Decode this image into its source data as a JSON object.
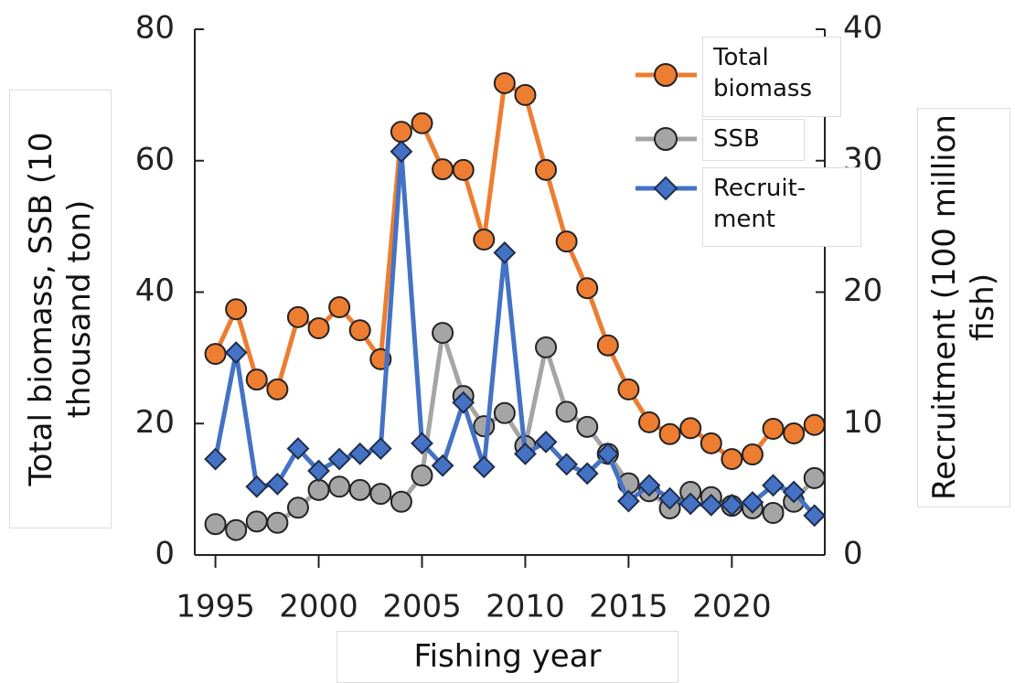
{
  "chart_data": {
    "type": "line",
    "x_label": "Fishing year",
    "y_label": "Total biomass, SSB (10 thousand ton)",
    "y2_label": "Recruitment (100 million fish)",
    "x": [
      1995,
      1996,
      1997,
      1998,
      1999,
      2000,
      2001,
      2002,
      2003,
      2004,
      2005,
      2006,
      2007,
      2008,
      2009,
      2010,
      2011,
      2012,
      2013,
      2014,
      2015,
      2016,
      2017,
      2018,
      2019,
      2020,
      2021,
      2022,
      2023,
      2024
    ],
    "xlim": [
      1994,
      2024.5
    ],
    "xticks": [
      1995,
      2000,
      2005,
      2010,
      2015,
      2020
    ],
    "ylim": [
      0,
      80
    ],
    "yticks": [
      0,
      20,
      40,
      60,
      80
    ],
    "y2lim": [
      0,
      40
    ],
    "y2ticks": [
      0,
      10,
      20,
      30,
      40
    ],
    "legend": "upper right",
    "series": [
      {
        "name": "Total biomass",
        "color": "#ed7d31",
        "marker": "circle",
        "values": [
          30.6,
          37.4,
          26.7,
          25.2,
          36.2,
          34.5,
          37.7,
          34.2,
          29.8,
          64.4,
          65.7,
          58.7,
          58.6,
          48.0,
          71.8,
          70.0,
          58.6,
          47.7,
          40.6,
          31.9,
          25.2,
          20.2,
          18.4,
          19.3,
          17.0,
          14.6,
          15.3,
          19.2,
          18.5,
          19.8
        ]
      },
      {
        "name": "SSB",
        "color": "#a5a5a5",
        "marker": "circle",
        "values": [
          4.7,
          3.8,
          5.1,
          4.9,
          7.2,
          9.9,
          10.4,
          9.9,
          9.3,
          8.1,
          12.1,
          33.8,
          24.2,
          19.6,
          21.6,
          16.6,
          31.6,
          21.8,
          19.5,
          15.4,
          10.9,
          9.7,
          7.1,
          9.6,
          8.8,
          7.5,
          7.1,
          6.4,
          8.1,
          11.7
        ]
      },
      {
        "name": "Recruit-ment",
        "color": "#4472c4",
        "marker": "diamond",
        "axis": "y2",
        "values": [
          7.3,
          15.4,
          5.2,
          5.4,
          8.1,
          6.4,
          7.3,
          7.7,
          8.1,
          30.7,
          8.5,
          6.8,
          11.6,
          6.7,
          23.0,
          7.7,
          8.6,
          6.9,
          6.2,
          7.7,
          4.1,
          5.3,
          4.3,
          3.9,
          3.8,
          3.8,
          4.0,
          5.3,
          4.8,
          3.0
        ]
      }
    ]
  }
}
